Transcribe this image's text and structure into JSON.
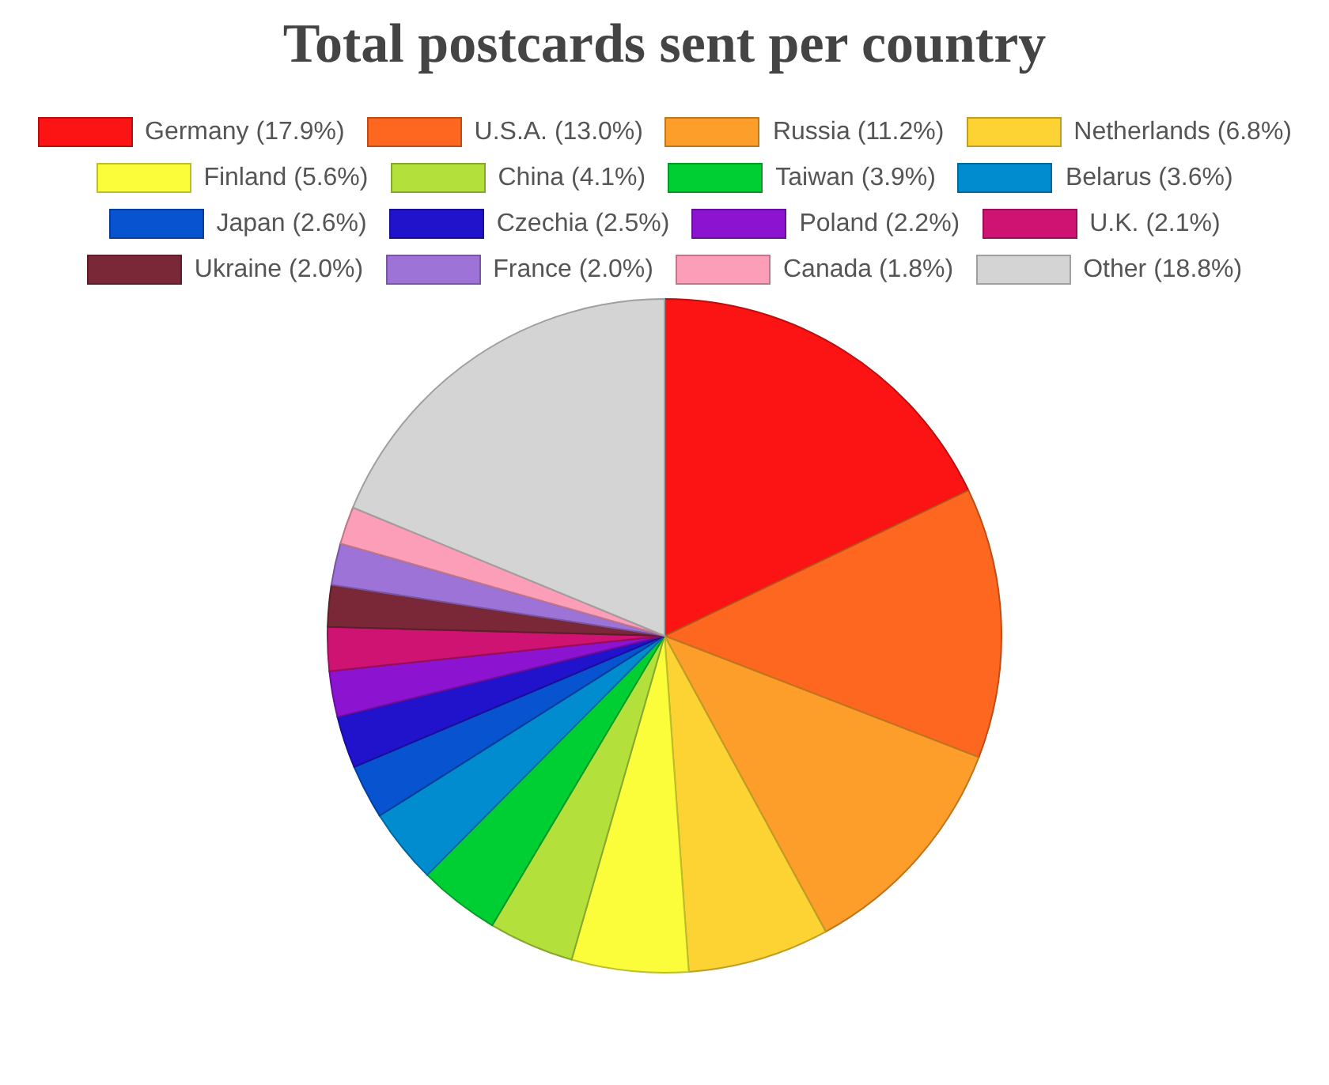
{
  "chart_data": {
    "type": "pie",
    "title": "Total postcards sent per country",
    "categories": [
      "Germany (17.9%)",
      "U.S.A. (13.0%)",
      "Russia (11.2%)",
      "Netherlands (6.8%)",
      "Finland (5.6%)",
      "China (4.1%)",
      "Taiwan (3.9%)",
      "Belarus (3.6%)",
      "Japan (2.6%)",
      "Czechia (2.5%)",
      "Poland (2.2%)",
      "U.K. (2.1%)",
      "Ukraine (2.0%)",
      "France (2.0%)",
      "Canada (1.8%)",
      "Other (18.8%)"
    ],
    "values": [
      17.9,
      13.0,
      11.2,
      6.8,
      5.6,
      4.1,
      3.9,
      3.6,
      2.6,
      2.5,
      2.2,
      2.1,
      2.0,
      2.0,
      1.8,
      18.8
    ],
    "colors": [
      "#fc1313",
      "#fd6720",
      "#fd9e2a",
      "#fdd233",
      "#fbfd3b",
      "#b3e03a",
      "#00cf33",
      "#008ccf",
      "#0853cf",
      "#2113cc",
      "#8c13cf",
      "#cf1373",
      "#7a2837",
      "#9e73d8",
      "#fd9eb9",
      "#d4d4d4"
    ],
    "legend": "top"
  }
}
